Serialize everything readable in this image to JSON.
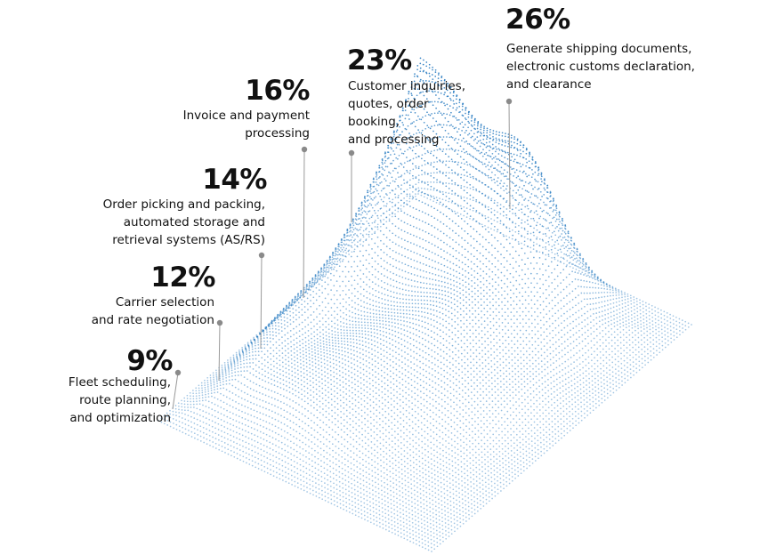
{
  "chart_data": {
    "type": "area",
    "subtype": "3d-dotted-terrain",
    "dot_color": "#2e7fc3",
    "leader_color": "#9a9a9a",
    "categories": [
      "Fleet scheduling, route planning, and optimization",
      "Carrier selection and rate negotiation",
      "Order picking and packing, automated storage and retrieval systems (AS/RS)",
      "Invoice and payment processing",
      "Customer inquiries, quotes, order booking, and processing",
      "Generate shipping documents, electronic customs declaration, and clearance"
    ],
    "values": [
      9,
      12,
      14,
      16,
      23,
      26
    ],
    "annotations": [
      {
        "value": "9%",
        "lines": [
          "Fleet scheduling,",
          "route planning,",
          "and optimization"
        ]
      },
      {
        "value": "12%",
        "lines": [
          "Carrier selection",
          "and rate negotiation"
        ]
      },
      {
        "value": "14%",
        "lines": [
          "Order picking and packing,",
          "automated storage and",
          "retrieval systems (AS/RS)"
        ]
      },
      {
        "value": "16%",
        "lines": [
          "Invoice and payment",
          "processing"
        ]
      },
      {
        "value": "23%",
        "lines": [
          "Customer inquiries,",
          "quotes, order",
          "booking,",
          "and processing"
        ]
      },
      {
        "value": "26%",
        "lines": [
          "Generate shipping documents,",
          "electronic customs declaration,",
          "and clearance"
        ]
      }
    ]
  }
}
